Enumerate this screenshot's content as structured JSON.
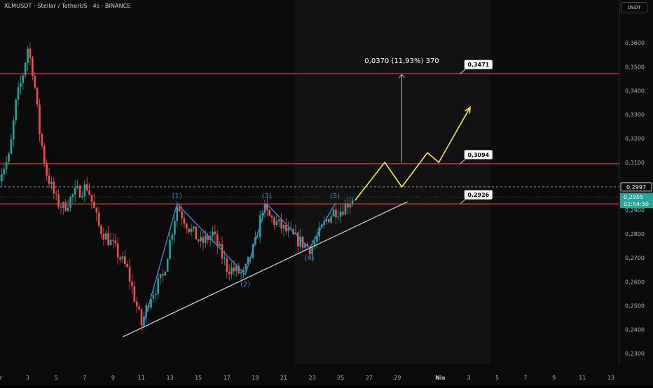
{
  "header": {
    "title": "XLMUSDT · Stellar / TetherUS · 4s · BINANCE",
    "currency_button": "USDT"
  },
  "colors": {
    "background": "#0b0b0b",
    "up_candle": "#26a69a",
    "down_candle": "#ef5350",
    "level_line": "#f23645",
    "wave_line": "#4a7fd4",
    "trend_line": "#d9d9d9",
    "projection": "#f5e663",
    "current_price_bg": "#26a69a"
  },
  "chart_data": {
    "type": "candlestick",
    "symbol": "XLMUSDT",
    "interval": "4s",
    "exchange": "BINANCE",
    "ylim": [
      0.2255,
      0.3715
    ],
    "y_ticks": [
      "0,3600",
      "0,3500",
      "0,3400",
      "0,3300",
      "0,3200",
      "0,3100",
      "0,2900",
      "0,2800",
      "0,2700",
      "0,2600",
      "0,2500",
      "0,2400",
      "0,2300"
    ],
    "y_tick_values": [
      0.36,
      0.35,
      0.34,
      0.33,
      0.32,
      0.31,
      0.29,
      0.28,
      0.27,
      0.26,
      0.25,
      0.24,
      0.23
    ],
    "x_ticks": [
      "ar",
      "3",
      "5",
      "7",
      "9",
      "11",
      "13",
      "15",
      "17",
      "19",
      "21",
      "23",
      "25",
      "27",
      "29",
      "Nis",
      "3",
      "5",
      "7",
      "9",
      "11",
      "13"
    ],
    "x_tick_days": [
      1,
      3,
      5,
      7,
      9,
      11,
      13,
      15,
      17,
      19,
      21,
      23,
      25,
      27,
      29,
      32,
      34,
      36,
      38,
      40,
      42,
      44
    ],
    "key_points": [
      {
        "day": 1.0,
        "price": 0.305
      },
      {
        "day": 1.7,
        "price": 0.312
      },
      {
        "day": 2.2,
        "price": 0.336
      },
      {
        "day": 2.6,
        "price": 0.345
      },
      {
        "day": 3.0,
        "price": 0.358
      },
      {
        "day": 3.4,
        "price": 0.347
      },
      {
        "day": 3.8,
        "price": 0.324
      },
      {
        "day": 4.3,
        "price": 0.306
      },
      {
        "day": 5.0,
        "price": 0.294
      },
      {
        "day": 5.5,
        "price": 0.291
      },
      {
        "day": 6.3,
        "price": 0.297
      },
      {
        "day": 7.2,
        "price": 0.3
      },
      {
        "day": 8.0,
        "price": 0.283
      },
      {
        "day": 9.0,
        "price": 0.275
      },
      {
        "day": 10.0,
        "price": 0.265
      },
      {
        "day": 11.0,
        "price": 0.242
      },
      {
        "day": 11.6,
        "price": 0.254
      },
      {
        "day": 12.5,
        "price": 0.262
      },
      {
        "day": 13.5,
        "price": 0.292
      },
      {
        "day": 14.3,
        "price": 0.283
      },
      {
        "day": 15.2,
        "price": 0.276
      },
      {
        "day": 16.0,
        "price": 0.28
      },
      {
        "day": 17.0,
        "price": 0.266
      },
      {
        "day": 18.2,
        "price": 0.263
      },
      {
        "day": 19.0,
        "price": 0.276
      },
      {
        "day": 19.5,
        "price": 0.291
      },
      {
        "day": 20.0,
        "price": 0.287
      },
      {
        "day": 21.0,
        "price": 0.282
      },
      {
        "day": 21.8,
        "price": 0.278
      },
      {
        "day": 22.9,
        "price": 0.274
      },
      {
        "day": 23.5,
        "price": 0.28
      },
      {
        "day": 24.0,
        "price": 0.286
      },
      {
        "day": 24.6,
        "price": 0.29
      },
      {
        "day": 25.0,
        "price": 0.29
      },
      {
        "day": 25.9,
        "price": 0.2955
      }
    ],
    "horizontal_levels": [
      {
        "value": 0.3471,
        "label": "0,3471"
      },
      {
        "value": 0.3094,
        "label": "0,3094"
      },
      {
        "value": 0.2926,
        "label": "0,2926"
      }
    ],
    "dashed_level": {
      "value": 0.2997,
      "label": "0,2997"
    },
    "current_price": {
      "value": 0.2955,
      "label": "0,2955",
      "countdown": "02:54:50"
    },
    "elliott_waves": [
      {
        "label": "(1)",
        "day": 13.5,
        "price": 0.2926
      },
      {
        "label": "(2)",
        "day": 18.3,
        "price": 0.263
      },
      {
        "label": "(3)",
        "day": 19.8,
        "price": 0.2926
      },
      {
        "label": "(4)",
        "day": 22.8,
        "price": 0.274
      },
      {
        "label": "(5)",
        "day": 24.6,
        "price": 0.2926
      }
    ],
    "wave_start": {
      "day": 11.1,
      "price": 0.2415
    },
    "trend_line": {
      "from": {
        "day": 9.7,
        "price": 0.237
      },
      "to": {
        "day": 29.7,
        "price": 0.2935
      }
    },
    "projection_path": [
      {
        "day": 26.0,
        "price": 0.294
      },
      {
        "day": 28.1,
        "price": 0.31
      },
      {
        "day": 29.3,
        "price": 0.2997
      },
      {
        "day": 31.1,
        "price": 0.314
      },
      {
        "day": 31.9,
        "price": 0.31
      },
      {
        "day": 34.1,
        "price": 0.333
      }
    ],
    "measure": {
      "label": "0,0370 (11,93%) 370",
      "from": {
        "day": 29.3,
        "price": 0.31
      },
      "to": {
        "day": 29.3,
        "price": 0.3471
      }
    }
  }
}
